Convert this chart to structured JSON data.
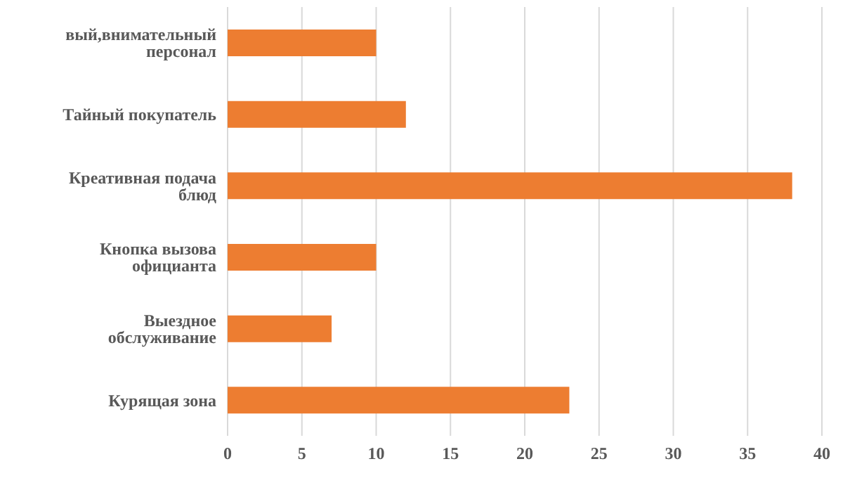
{
  "chart_data": {
    "type": "bar",
    "orientation": "horizontal",
    "categories": [
      "вый,внимательный персонал",
      "Тайный покупатель",
      "Креативная подача блюд",
      "Кнопка вызова официанта",
      "Выездное обслуживание",
      "Курящая зона"
    ],
    "values": [
      10,
      12,
      38,
      10,
      7,
      23
    ],
    "color": "#ed7d31",
    "xlim": [
      0,
      40
    ],
    "xticks": [
      0,
      5,
      10,
      15,
      20,
      25,
      30,
      35,
      40
    ],
    "grid": "x"
  }
}
